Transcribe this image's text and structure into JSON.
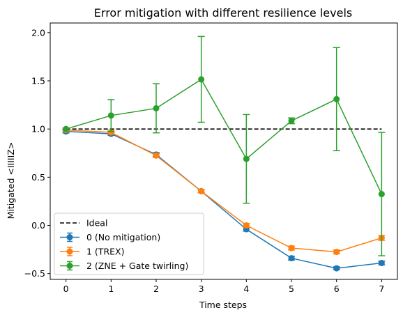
{
  "chart_data": {
    "type": "line",
    "title": "Error mitigation with different resilience levels",
    "xlabel": "Time steps",
    "ylabel": "Mitigated <IIIIIZ>",
    "xlim": [
      -0.35,
      7.35
    ],
    "ylim": [
      -0.56,
      2.1
    ],
    "xticks": [
      "0",
      "1",
      "2",
      "3",
      "4",
      "5",
      "6",
      "7"
    ],
    "yticks": [
      "−0.5",
      "0.0",
      "0.5",
      "1.0",
      "1.5",
      "2.0"
    ],
    "ytick_values": [
      -0.5,
      0.0,
      0.5,
      1.0,
      1.5,
      2.0
    ],
    "x": [
      0,
      1,
      2,
      3,
      4,
      5,
      6,
      7
    ],
    "reference": {
      "name": "Ideal",
      "value": 1.0,
      "style": "dashed",
      "color": "#000000"
    },
    "series": [
      {
        "name": "0 (No mitigation)",
        "color": "#1f77b4",
        "values": [
          0.975,
          0.95,
          0.735,
          0.355,
          -0.04,
          -0.34,
          -0.445,
          -0.39
        ],
        "errors": [
          0.015,
          0.015,
          0.02,
          0.015,
          0.02,
          0.02,
          0.015,
          0.02
        ]
      },
      {
        "name": "1 (TREX)",
        "color": "#ff7f0e",
        "values": [
          0.99,
          0.965,
          0.725,
          0.355,
          0.0,
          -0.235,
          -0.275,
          -0.13
        ],
        "errors": [
          0.01,
          0.02,
          0.02,
          0.015,
          0.02,
          0.02,
          0.02,
          0.025
        ]
      },
      {
        "name": "2 (ZNE + Gate twirling)",
        "color": "#2ca02c",
        "values": [
          1.0,
          1.14,
          1.215,
          1.515,
          0.69,
          1.085,
          1.31,
          0.325
        ],
        "errors": [
          0.01,
          0.165,
          0.255,
          0.445,
          0.46,
          0.03,
          0.535,
          0.64
        ]
      }
    ],
    "legend_position": "lower-left",
    "grid": false
  }
}
